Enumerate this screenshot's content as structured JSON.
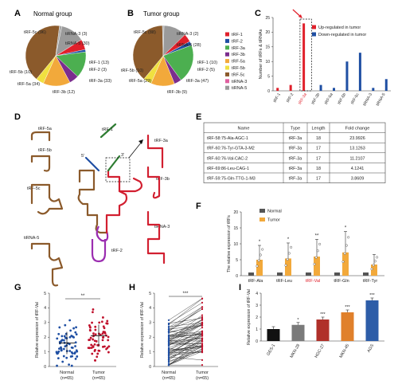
{
  "colors": {
    "brown": "#8B5A2B",
    "orange": "#F2A93B",
    "yellow": "#F0E040",
    "green": "#4CAF50",
    "purple": "#7B2D8E",
    "red": "#E0202B",
    "darkred": "#C0102B",
    "gray": "#A8A8A8",
    "blue": "#1F4FA3",
    "pink": "#E060A0"
  },
  "panels": {
    "A": {
      "letter": "A",
      "title": "Normal group"
    },
    "B": {
      "letter": "B",
      "title": "Tumor group"
    },
    "C": {
      "letter": "C"
    },
    "D": {
      "letter": "D"
    },
    "E": {
      "letter": "E"
    },
    "F": {
      "letter": "F"
    },
    "G": {
      "letter": "G"
    },
    "H": {
      "letter": "H"
    },
    "I": {
      "letter": "I"
    }
  },
  "pieA_labels": [
    "tRF-5c (96)",
    "tiRNA-3 (3)",
    "tiRNA-5 (30)",
    "tRF-1 (13)",
    "tRF-2 (3)",
    "tRF-3a (33)",
    "tRF-3b (12)",
    "tRF-5a (34)",
    "tRF-5b (10)"
  ],
  "pieB_labels": [
    "tRF-5c (88)",
    "tiRNA-3 (2)",
    "tiRNA-5 (28)",
    "tRF-1 (10)",
    "tRF-2 (5)",
    "tRF-3a (47)",
    "tRF-3b (9)",
    "tRF-5a (29)",
    "tRF-5b (10)"
  ],
  "legendB": [
    "tRF-1",
    "tRF-2",
    "tRF-3a",
    "tRF-3b",
    "tRF-5a",
    "tRF-5b",
    "tRF-5c",
    "tiRNA-3",
    "tiRNA-5"
  ],
  "legendC": [
    "Up-regulated in tumor",
    "Down-regulated in tumor"
  ],
  "labelsD": [
    "tRF-5a",
    "tRF-5b",
    "tRF-5c",
    "tiRNA-5",
    "tRF-1",
    "5'",
    "3'",
    "tRF-3a",
    "tRF-3b",
    "tiRNA-3",
    "tRF-2"
  ],
  "tableE": {
    "headers": [
      "Name",
      "Type",
      "Length",
      "Fold change"
    ],
    "rows": [
      [
        "tRF-58:75-Ala-AGC-1",
        "tRF-3a",
        "18",
        "23.9926"
      ],
      [
        "tRF-60:76-Tyr-GTA-3-M2",
        "tRF-3a",
        "17",
        "13.1263"
      ],
      [
        "tRF-60:76-Val-CAC-2",
        "tRF-3a",
        "17",
        "11.2107"
      ],
      [
        "tRF-69:86-Leu-CAG-1",
        "tRF-3a",
        "18",
        "4.1241"
      ],
      [
        "tRF-59:75-Gln-TTG-1-M3",
        "tRF-3a",
        "17",
        "3.8609"
      ]
    ]
  },
  "legendF": [
    "Normal",
    "Tumor"
  ],
  "captionsG": [
    "Normal",
    "(n=65)",
    "Tumor",
    "(n=65)"
  ],
  "chart_data": [
    {
      "type": "pie",
      "panel": "A",
      "title": "Normal group",
      "categories": [
        "tRF-5c",
        "tiRNA-3",
        "tiRNA-5",
        "tRF-1",
        "tRF-2",
        "tRF-3a",
        "tRF-3b",
        "tRF-5a",
        "tRF-5b"
      ],
      "values": [
        96,
        3,
        30,
        13,
        3,
        33,
        12,
        34,
        10
      ]
    },
    {
      "type": "pie",
      "panel": "B",
      "title": "Tumor group",
      "categories": [
        "tRF-5c",
        "tiRNA-3",
        "tiRNA-5",
        "tRF-1",
        "tRF-2",
        "tRF-3a",
        "tRF-3b",
        "tRF-5a",
        "tRF-5b"
      ],
      "values": [
        88,
        2,
        28,
        10,
        5,
        47,
        9,
        29,
        10
      ]
    },
    {
      "type": "bar",
      "panel": "C",
      "ylabel": "Number of tRFs & tiRNAs",
      "ylim": [
        0,
        25
      ],
      "yticks": [
        0,
        5,
        10,
        15,
        20,
        25
      ],
      "categories": [
        "tRF-1",
        "tRF-2",
        "tRF-3a",
        "tRF-3b",
        "tRF-5a",
        "tRF-5b",
        "tRF-5c",
        "tiRNA-3",
        "tiRNA-5"
      ],
      "series": [
        {
          "name": "Up-regulated in tumor",
          "values": [
            1,
            2,
            23,
            0,
            0,
            0,
            0,
            0,
            0
          ]
        },
        {
          "name": "Down-regulated in tumor",
          "values": [
            0,
            0,
            0,
            2,
            1,
            10,
            13,
            1,
            4
          ]
        }
      ]
    },
    {
      "type": "bar",
      "panel": "F",
      "ylabel": "The relative expression of tRFs",
      "ylim": [
        0,
        20
      ],
      "yticks": [
        0,
        5,
        10,
        15,
        20
      ],
      "categories": [
        "tRF-Ala",
        "tRF-Leu",
        "tRF-Val",
        "tRF-Gln",
        "tRF-Tyr"
      ],
      "series": [
        {
          "name": "Normal",
          "values": [
            1,
            1,
            1,
            1,
            1
          ]
        },
        {
          "name": "Tumor",
          "values": [
            5,
            5.4,
            6,
            7.3,
            3.5
          ]
        }
      ],
      "sig": [
        "*",
        "*",
        "**",
        "*",
        ""
      ]
    },
    {
      "type": "scatter",
      "panel": "G",
      "ylabel": "Relative expression of tRF-Val",
      "ylim": [
        0,
        5
      ],
      "yticks": [
        0,
        1,
        2,
        3,
        4,
        5
      ],
      "categories": [
        "Normal",
        "Tumor"
      ],
      "means": [
        1.6,
        2.1
      ],
      "sig": "**"
    },
    {
      "type": "line",
      "panel": "H",
      "ylabel": "Relative expression of tRF-Val",
      "ylim": [
        0,
        5
      ],
      "yticks": [
        0,
        1,
        2,
        3,
        4,
        5
      ],
      "categories": [
        "Normal",
        "Tumor"
      ],
      "sig": "***"
    },
    {
      "type": "bar",
      "panel": "I",
      "ylabel": "Relative expression of tRF-Val",
      "ylim": [
        0,
        4
      ],
      "yticks": [
        0,
        1,
        2,
        3,
        4
      ],
      "categories": [
        "GES-1",
        "MKN-28",
        "HGC-27",
        "MKN-45",
        "AGS"
      ],
      "values": [
        1,
        1.35,
        1.8,
        2.4,
        3.4
      ],
      "sig": [
        "",
        "*",
        "***",
        "***",
        "***"
      ]
    }
  ]
}
